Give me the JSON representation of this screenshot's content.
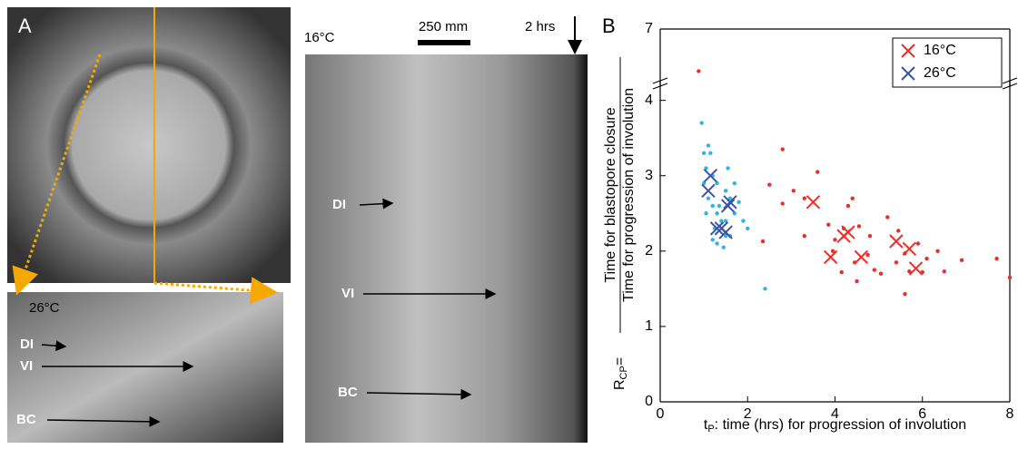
{
  "panel_a": {
    "label": "A",
    "bottom_left": {
      "temp": "26°C",
      "markers": [
        "DI",
        "VI",
        "BC"
      ]
    },
    "right": {
      "temp": "16°C",
      "scale": "250 mm",
      "time": "2 hrs",
      "markers": [
        "DI",
        "VI",
        "BC"
      ]
    }
  },
  "chart_data": {
    "type": "scatter",
    "panel_label": "B",
    "ylabel": {
      "symbol": "R",
      "subscript": "CP",
      "equals": "=",
      "numerator": "Time for blastopore closure",
      "denominator": "Time for progression of involution"
    },
    "xlabel": {
      "symbol": "t",
      "subscript": "P",
      "text": ": time (hrs) for progression of involution"
    },
    "xlim": [
      0,
      8
    ],
    "xticks": [
      0,
      2,
      4,
      6,
      8
    ],
    "ylim": [
      0,
      7
    ],
    "yticks": [
      0,
      1,
      2,
      3,
      4,
      7
    ],
    "ybreak": [
      4.2,
      4.5
    ],
    "legend": "upper right",
    "series": [
      {
        "name": "16°C",
        "color": "#e8302a",
        "dot_color": "#e8302a",
        "x": [
          0.88,
          2.8,
          2.5,
          2.8,
          3.05,
          3.3,
          3.6,
          4.3,
          4.4,
          3.3,
          3.85,
          4.0,
          4.2,
          4.55,
          4.8,
          4.75,
          4.45,
          4.9,
          5.2,
          5.45,
          5.6,
          5.7,
          5.6,
          5.9,
          6.1,
          6.35,
          6.5,
          6.9,
          7.7,
          8.0,
          3.95,
          4.15,
          4.5,
          5.05,
          2.35,
          5.4,
          6.0
        ],
        "values": [
          5.0,
          3.35,
          2.88,
          2.63,
          2.8,
          2.7,
          3.05,
          2.6,
          2.7,
          2.2,
          2.35,
          2.15,
          2.3,
          2.33,
          2.2,
          1.95,
          1.85,
          1.75,
          2.45,
          2.27,
          1.97,
          1.73,
          1.43,
          2.1,
          1.9,
          2.0,
          1.73,
          1.88,
          1.9,
          1.65,
          2.0,
          1.72,
          1.6,
          1.7,
          2.13,
          1.85,
          1.72
        ],
        "means": {
          "x": [
            3.5,
            3.9,
            4.2,
            4.3,
            4.6,
            5.4,
            5.7,
            5.85
          ],
          "values": [
            2.65,
            1.92,
            2.2,
            2.25,
            1.92,
            2.13,
            2.03,
            1.77
          ]
        }
      },
      {
        "name": "26°C",
        "color": "#3b55a5",
        "dot_color": "#2fb5e0",
        "x": [
          0.95,
          1.0,
          1.05,
          1.1,
          1.15,
          1.2,
          1.3,
          1.0,
          1.1,
          1.2,
          1.3,
          1.4,
          1.5,
          1.6,
          1.7,
          1.5,
          1.3,
          1.45,
          1.6,
          1.25,
          1.9,
          2.0,
          1.35,
          1.55,
          1.7,
          1.2,
          1.05,
          2.4,
          1.5,
          1.8
        ],
        "values": [
          3.7,
          3.3,
          3.1,
          3.4,
          3.3,
          3.0,
          2.9,
          2.9,
          2.7,
          2.6,
          2.5,
          2.4,
          2.8,
          2.7,
          2.5,
          2.2,
          2.1,
          2.05,
          2.2,
          2.3,
          2.4,
          2.3,
          2.6,
          3.1,
          2.9,
          2.15,
          2.5,
          1.5,
          2.4,
          2.65
        ],
        "means": {
          "x": [
            1.15,
            1.1,
            1.6,
            1.55,
            1.3,
            1.4,
            1.5
          ],
          "values": [
            3.0,
            2.8,
            2.65,
            2.6,
            2.3,
            2.3,
            2.25
          ]
        }
      }
    ]
  }
}
